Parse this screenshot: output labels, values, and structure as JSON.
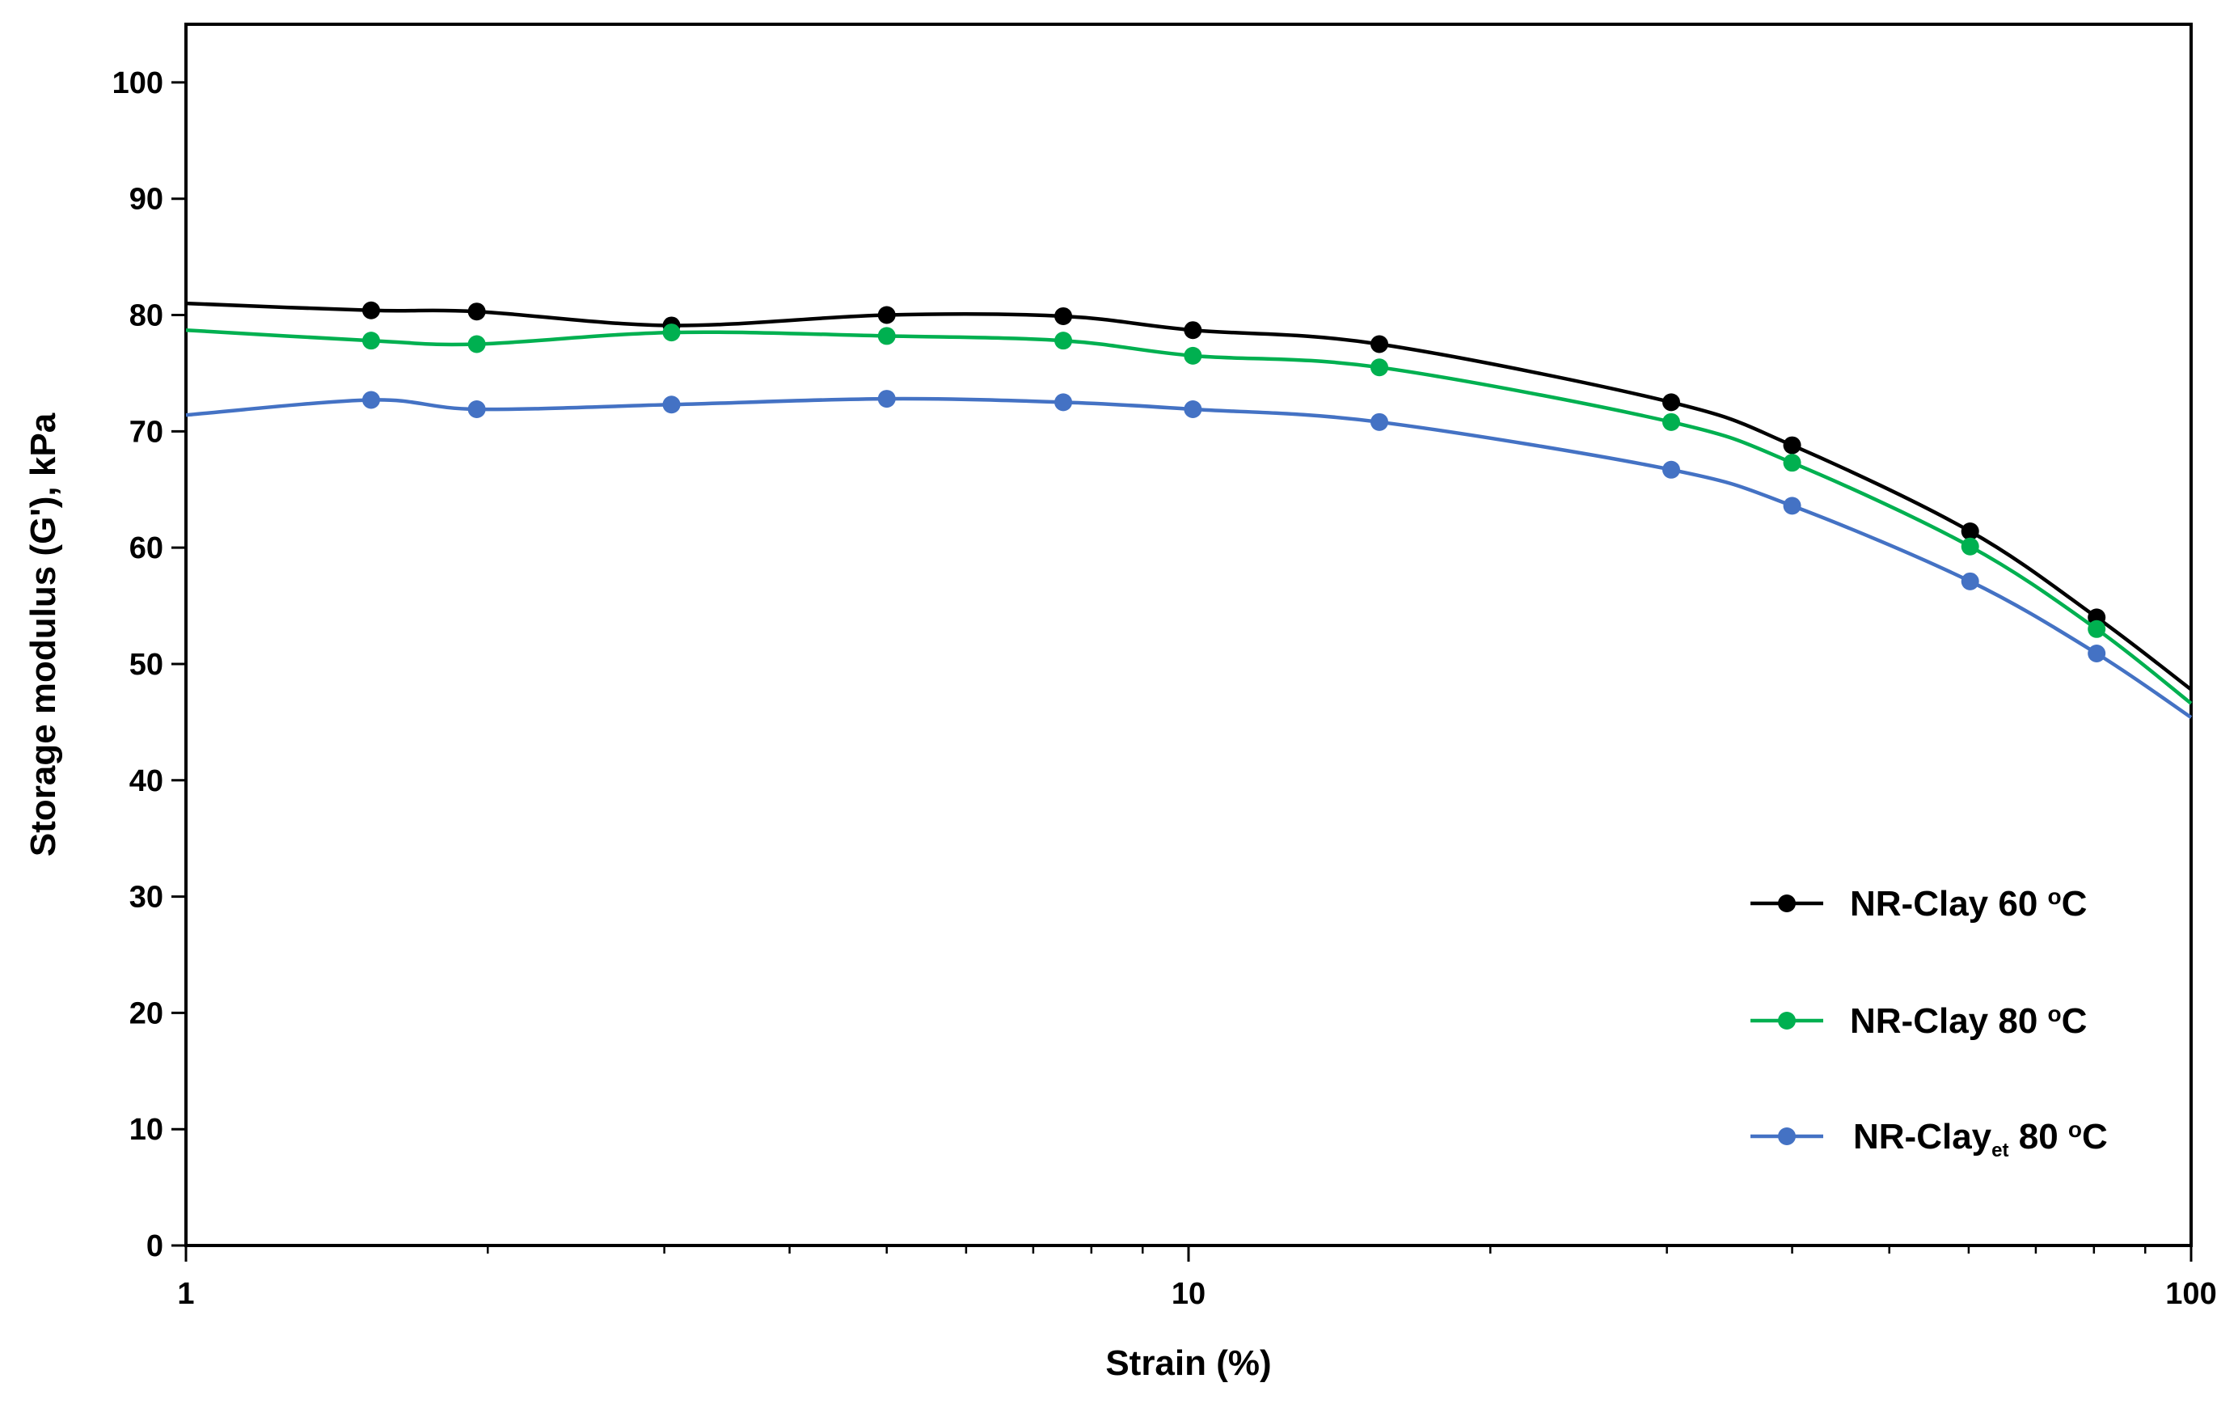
{
  "chart_data": {
    "type": "line",
    "title": "",
    "xlabel": "Strain (%)",
    "ylabel": "Storage modulus (G'), kPa",
    "xscale": "log",
    "xlim": [
      1,
      100
    ],
    "ylim": [
      0,
      105
    ],
    "xticks": [
      1,
      10,
      100
    ],
    "xtick_labels": [
      "1",
      "10",
      "100"
    ],
    "yticks": [
      0,
      10,
      20,
      30,
      40,
      50,
      60,
      70,
      80,
      90,
      100
    ],
    "ytick_labels": [
      "0",
      "10",
      "20",
      "30",
      "40",
      "50",
      "60",
      "70",
      "80",
      "90",
      "100"
    ],
    "grid": false,
    "legend_position": "bottom-right",
    "series": [
      {
        "name": "NR-Clay 60 °C",
        "legend": {
          "main": "NR-Clay 60 ",
          "sup": "o",
          "tail": "C"
        },
        "color": "#000000",
        "line_start": [
          1,
          81.0
        ],
        "line_end": [
          100,
          47.8
        ],
        "x": [
          1.53,
          1.95,
          3.05,
          5.0,
          7.5,
          10.1,
          15.5,
          30.3,
          40.0,
          60.2,
          80.5
        ],
        "y": [
          80.4,
          80.3,
          79.1,
          80.0,
          79.9,
          78.7,
          77.5,
          72.5,
          68.8,
          61.4,
          54.0
        ]
      },
      {
        "name": "NR-Clay 80 °C",
        "legend": {
          "main": "NR-Clay 80 ",
          "sup": "o",
          "tail": "C"
        },
        "color": "#00b050",
        "line_start": [
          1,
          78.7
        ],
        "line_end": [
          100,
          46.6
        ],
        "x": [
          1.53,
          1.95,
          3.05,
          5.0,
          7.5,
          10.1,
          15.5,
          30.3,
          40.0,
          60.2,
          80.5
        ],
        "y": [
          77.8,
          77.5,
          78.5,
          78.2,
          77.8,
          76.5,
          75.5,
          70.8,
          67.3,
          60.1,
          53.0
        ]
      },
      {
        "name": "NR-Clayet 80 °C",
        "legend": {
          "main": "NR-Clay",
          "sub": "et",
          "mid": " 80 ",
          "sup": "o",
          "tail": "C"
        },
        "color": "#4472c4",
        "line_start": [
          1,
          71.4
        ],
        "line_end": [
          100,
          45.4
        ],
        "x": [
          1.53,
          1.95,
          3.05,
          5.0,
          7.5,
          10.1,
          15.5,
          30.3,
          40.0,
          60.2,
          80.5
        ],
        "y": [
          72.7,
          71.9,
          72.3,
          72.8,
          72.5,
          71.9,
          70.8,
          66.7,
          63.6,
          57.1,
          50.9
        ]
      }
    ]
  }
}
